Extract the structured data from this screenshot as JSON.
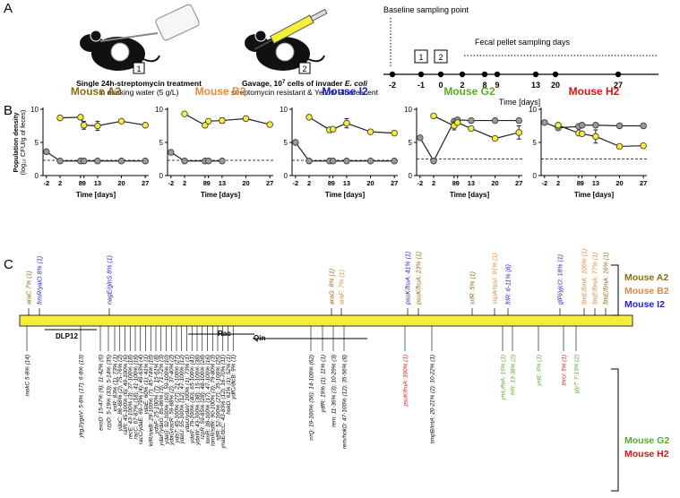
{
  "panel_labels": [
    "A",
    "B",
    "C"
  ],
  "panel_a": {
    "steps": [
      {
        "number": "1",
        "title": "Single 24h-streptomycin treatment",
        "subtitle": "in drinking water (5 g/L)"
      },
      {
        "number": "2",
        "title_parts": [
          "Gavage, 10",
          "7",
          " cells of invader ",
          "E. coli"
        ],
        "subtitle": "streptomycin resistant & Yellow Fluorescent"
      }
    ],
    "timeline": {
      "baseline": "Baseline sampling point",
      "fecal": "Fecal pellet sampling days",
      "boxes": [
        "1",
        "2"
      ],
      "days": [
        -2,
        -1,
        0,
        2,
        8,
        9,
        13,
        20,
        27
      ],
      "xlabel": "Time [days]"
    }
  },
  "chart_data": [
    {
      "type": "line",
      "title": "Mouse A2",
      "title_color": "#8b6a12",
      "ylabel": [
        "Population density",
        "(log₁₀ CFU/g of feces)"
      ],
      "xlabel": "Time [days]",
      "x": [
        -2,
        2,
        8,
        9,
        13,
        20,
        27
      ],
      "xlim": [
        -3,
        28
      ],
      "xticks": [
        -2,
        2,
        8,
        9,
        13,
        20,
        27
      ],
      "ylim": [
        0,
        10
      ],
      "yticks": [
        0,
        5,
        10
      ],
      "threshold": 2.3,
      "series": [
        {
          "color": "#999999",
          "values": [
            3.6,
            2.2,
            2.2,
            2.2,
            2.2,
            2.2,
            2.2
          ]
        },
        {
          "color": "#f2ee3a",
          "values": [
            null,
            8.7,
            8.8,
            7.6,
            7.5,
            8.2,
            7.6
          ],
          "errors": [
            null,
            null,
            null,
            0.6,
            0.7,
            null,
            null
          ]
        }
      ]
    },
    {
      "type": "line",
      "title": "Mouse B2",
      "title_color": "#e0893a",
      "xlabel": "Time [days]",
      "x": [
        -2,
        2,
        8,
        9,
        13,
        20,
        27
      ],
      "xlim": [
        -3,
        28
      ],
      "xticks": [
        -2,
        2,
        8,
        9,
        13,
        20,
        27
      ],
      "ylim": [
        0,
        10
      ],
      "yticks": [
        0,
        5,
        10
      ],
      "threshold": 2.3,
      "series": [
        {
          "color": "#999999",
          "values": [
            3.5,
            2.2,
            2.2,
            2.2,
            2.2,
            null,
            null
          ]
        },
        {
          "color": "#f2ee3a",
          "values": [
            null,
            9.3,
            7.6,
            8.2,
            8.3,
            8.6,
            7.7
          ],
          "errors": [
            null,
            null,
            null,
            null,
            0.4,
            null,
            null
          ]
        }
      ]
    },
    {
      "type": "line",
      "title": "Mouse I2",
      "title_color": "#2323c8",
      "xlabel": "Time [days]",
      "x": [
        -2,
        2,
        8,
        9,
        13,
        20,
        27
      ],
      "xlim": [
        -3,
        28
      ],
      "xticks": [
        -2,
        2,
        8,
        9,
        13,
        20,
        27
      ],
      "ylim": [
        0,
        10
      ],
      "yticks": [
        0,
        5,
        10
      ],
      "threshold": 2.3,
      "series": [
        {
          "color": "#999999",
          "values": [
            5.0,
            2.2,
            2.2,
            2.2,
            2.2,
            2.2,
            2.2
          ]
        },
        {
          "color": "#f2ee3a",
          "values": [
            null,
            8.8,
            6.9,
            7.0,
            7.9,
            6.6,
            6.4
          ],
          "errors": [
            null,
            null,
            0.4,
            null,
            0.7,
            null,
            null
          ]
        }
      ]
    },
    {
      "type": "line",
      "title": "Mouse G2",
      "title_color": "#5aa82c",
      "xlabel": "Time [days]",
      "x": [
        -2,
        2,
        8,
        9,
        13,
        20,
        27
      ],
      "xlim": [
        -3,
        28
      ],
      "xticks": [
        -2,
        2,
        8,
        9,
        13,
        20,
        27
      ],
      "ylim": [
        0,
        10
      ],
      "yticks": [
        0,
        5,
        10
      ],
      "threshold": 2.5,
      "series": [
        {
          "color": "#999999",
          "values": [
            5.7,
            2.2,
            8.2,
            8.4,
            8.3,
            8.3,
            8.3
          ]
        },
        {
          "color": "#f2ee3a",
          "values": [
            null,
            9.0,
            7.5,
            8.0,
            7.1,
            5.6,
            6.5
          ],
          "errors": [
            null,
            null,
            0.6,
            null,
            null,
            null,
            1.0
          ]
        }
      ]
    },
    {
      "type": "line",
      "title": "Mouse H2",
      "title_color": "#dd1111",
      "xlabel": "Time [days]",
      "x": [
        -2,
        2,
        8,
        9,
        13,
        20,
        27
      ],
      "xlim": [
        -3,
        28
      ],
      "xticks": [
        -2,
        2,
        8,
        9,
        13,
        20,
        27
      ],
      "ylim": [
        0,
        10
      ],
      "yticks": [
        0,
        5,
        10
      ],
      "threshold": 2.5,
      "series": [
        {
          "color": "#999999",
          "values": [
            8.0,
            7.2,
            7.4,
            7.6,
            7.6,
            7.5,
            7.5
          ]
        },
        {
          "color": "#f2ee3a",
          "values": [
            null,
            7.6,
            6.4,
            6.3,
            5.9,
            4.4,
            4.5
          ],
          "errors": [
            null,
            null,
            null,
            null,
            1.0,
            null,
            null
          ]
        }
      ]
    }
  ],
  "genome": {
    "regions": [
      "DLP12",
      "Rac",
      "Qin"
    ],
    "above": [
      {
        "text": "araC 7% (1)",
        "color": "#8b6a12"
      },
      {
        "text": "frmR/yaiO 8% (1)",
        "color": "#2323c8"
      },
      {
        "text": "nagE/glnS 8% (1)",
        "color": "#2323c8"
      },
      {
        "text": "araG: 8% (1)",
        "color": "#8b6a12"
      },
      {
        "text": "araF: 7% (1)",
        "color": "#e0893a"
      },
      {
        "text": "psuK/fruA: 41% (1)",
        "color": "#2323c8"
      },
      {
        "text": "psuK/fruA: 23% (1)",
        "color": "#8b6a12"
      },
      {
        "text": "srlR: 5% (1)",
        "color": "#8b6a12"
      },
      {
        "text": "sspA/rpsI: 91% (1)",
        "color": "#e0893a"
      },
      {
        "text": "frlR: 6-11% (6)",
        "color": "#2323c8"
      },
      {
        "text": "glPi/yjcO: 18% (1)",
        "color": "#2323c8"
      },
      {
        "text": "fimE/fimA: 100% (1)",
        "color": "#e0893a"
      },
      {
        "text": "fimE/fimA: 77% (1)",
        "color": "#e0893a"
      },
      {
        "text": "fimE/fimA: 16% (1)",
        "color": "#8b6a12"
      }
    ],
    "below": [
      {
        "text": "mokC 5-8% (14)",
        "color": "#000000"
      },
      {
        "text": "ykgJ/ygaV: 5-8% (17); 6-8% (13)",
        "color": "#000000"
      },
      {
        "text": "exoD: 15-47% (9); 11-42% (6)",
        "color": "#000000"
      },
      {
        "text": "rzpD: 5-19% (33); 5-14% (35)",
        "color": "#000000"
      },
      {
        "text": "intR: 83% (1); 73% (1)",
        "color": "#000000"
      },
      {
        "text": "ydaC: 86-88% (2); 75-76% (2)",
        "color": "#000000"
      },
      {
        "text": "ralR: 45-100% (6); 49-100% (6)",
        "color": "#000000"
      },
      {
        "text": "recE: 43-100% (3); 37-100% (18)",
        "color": "#000000"
      },
      {
        "text": "racC: 67-87% (18); 41-100% (18)",
        "color": "#000000"
      },
      {
        "text": "racC/ydaE: 69-79% (4); 49-63% (4)",
        "color": "#000000"
      },
      {
        "text": "ydaE: 60% (1); 41% (1)",
        "color": "#000000"
      },
      {
        "text": "kilR/sieB: 29-100% (7); 45-74% (10)",
        "color": "#000000"
      },
      {
        "text": "ydaF: 25-100% (7); 15-61% (8)",
        "color": "#000000"
      },
      {
        "text": "ydaF/ydaG: 85-86% (3); 71-72% (3)",
        "color": "#000000"
      },
      {
        "text": "ydaG: 92-100% (10); 59-100% (10)",
        "color": "#000000"
      },
      {
        "text": "ydaG/racR: 59-88% (2); 37-40% (2)",
        "color": "#000000"
      },
      {
        "text": "ydaT: 45-100% (27); 21-100% (27)",
        "color": "#000000"
      },
      {
        "text": "ydaU: 55-100% (12); 47-100% (12)",
        "color": "#000000"
      },
      {
        "text": "ydaU/ydaV: 100% (1); 73% (1)",
        "color": "#000000"
      },
      {
        "text": "ydaV: 79-100% (40); 65-100% (41)",
        "color": "#000000"
      },
      {
        "text": "ydaW: 43-100% (38); 15-100% (38)",
        "color": "#000000"
      },
      {
        "text": "rzpR: 59-85% (28); 48-100% (28)",
        "color": "#000000"
      },
      {
        "text": "lomR: 38-100% (17); 47-100% (16)",
        "color": "#000000"
      },
      {
        "text": "lomR/stfR: 90-100% (3); 79-80% (3)",
        "color": "#000000"
      },
      {
        "text": "stfR: 52-100% (27); 35-100% (25)",
        "color": "#000000"
      },
      {
        "text": "ynaE/ttcC: 43-83% (12); 16-70% (11)",
        "color": "#000000"
      },
      {
        "text": "hokD: 61% (1); 52% (1)",
        "color": "#000000"
      },
      {
        "text": "ydfC/dicB: 9% (1)",
        "color": "#000000"
      },
      {
        "text": "rrrQ: 19-100% (56); 14-100% (62)",
        "color": "#000000"
      },
      {
        "text": "ydfR: 19% (1); 11% (1)",
        "color": "#000000"
      },
      {
        "text": "rem: 11-36% (3); 10-29% (3)",
        "color": "#000000"
      },
      {
        "text": "rem/hokD: 47-100% (12); 35-56% (8)",
        "color": "#000000"
      },
      {
        "text": "psuK/fruA: 100% (1)",
        "color": "#dd1111"
      },
      {
        "text": "smpB/intA: 20-21% (2); 10-22% (1)",
        "color": "#000000"
      },
      {
        "text": "yhiL/fhiA: 15% (1)",
        "color": "#5aa82c"
      },
      {
        "text": "frlR: 13-38% (2)",
        "color": "#5aa82c"
      },
      {
        "text": "yidE: 6% (1)",
        "color": "#5aa82c"
      },
      {
        "text": "thrU: 5% (1)",
        "color": "#dd1111"
      },
      {
        "text": "glyT: 7-13% (2)",
        "color": "#5aa82c"
      }
    ],
    "legend_top": [
      {
        "text": "Mouse A2",
        "color": "#8b6a12"
      },
      {
        "text": "Mouse B2",
        "color": "#e0893a"
      },
      {
        "text": "Mouse I2",
        "color": "#2323c8"
      }
    ],
    "legend_bottom": [
      {
        "text": "Mouse G2",
        "color": "#5aa82c"
      },
      {
        "text": "Mouse H2",
        "color": "#dd1111"
      }
    ]
  }
}
